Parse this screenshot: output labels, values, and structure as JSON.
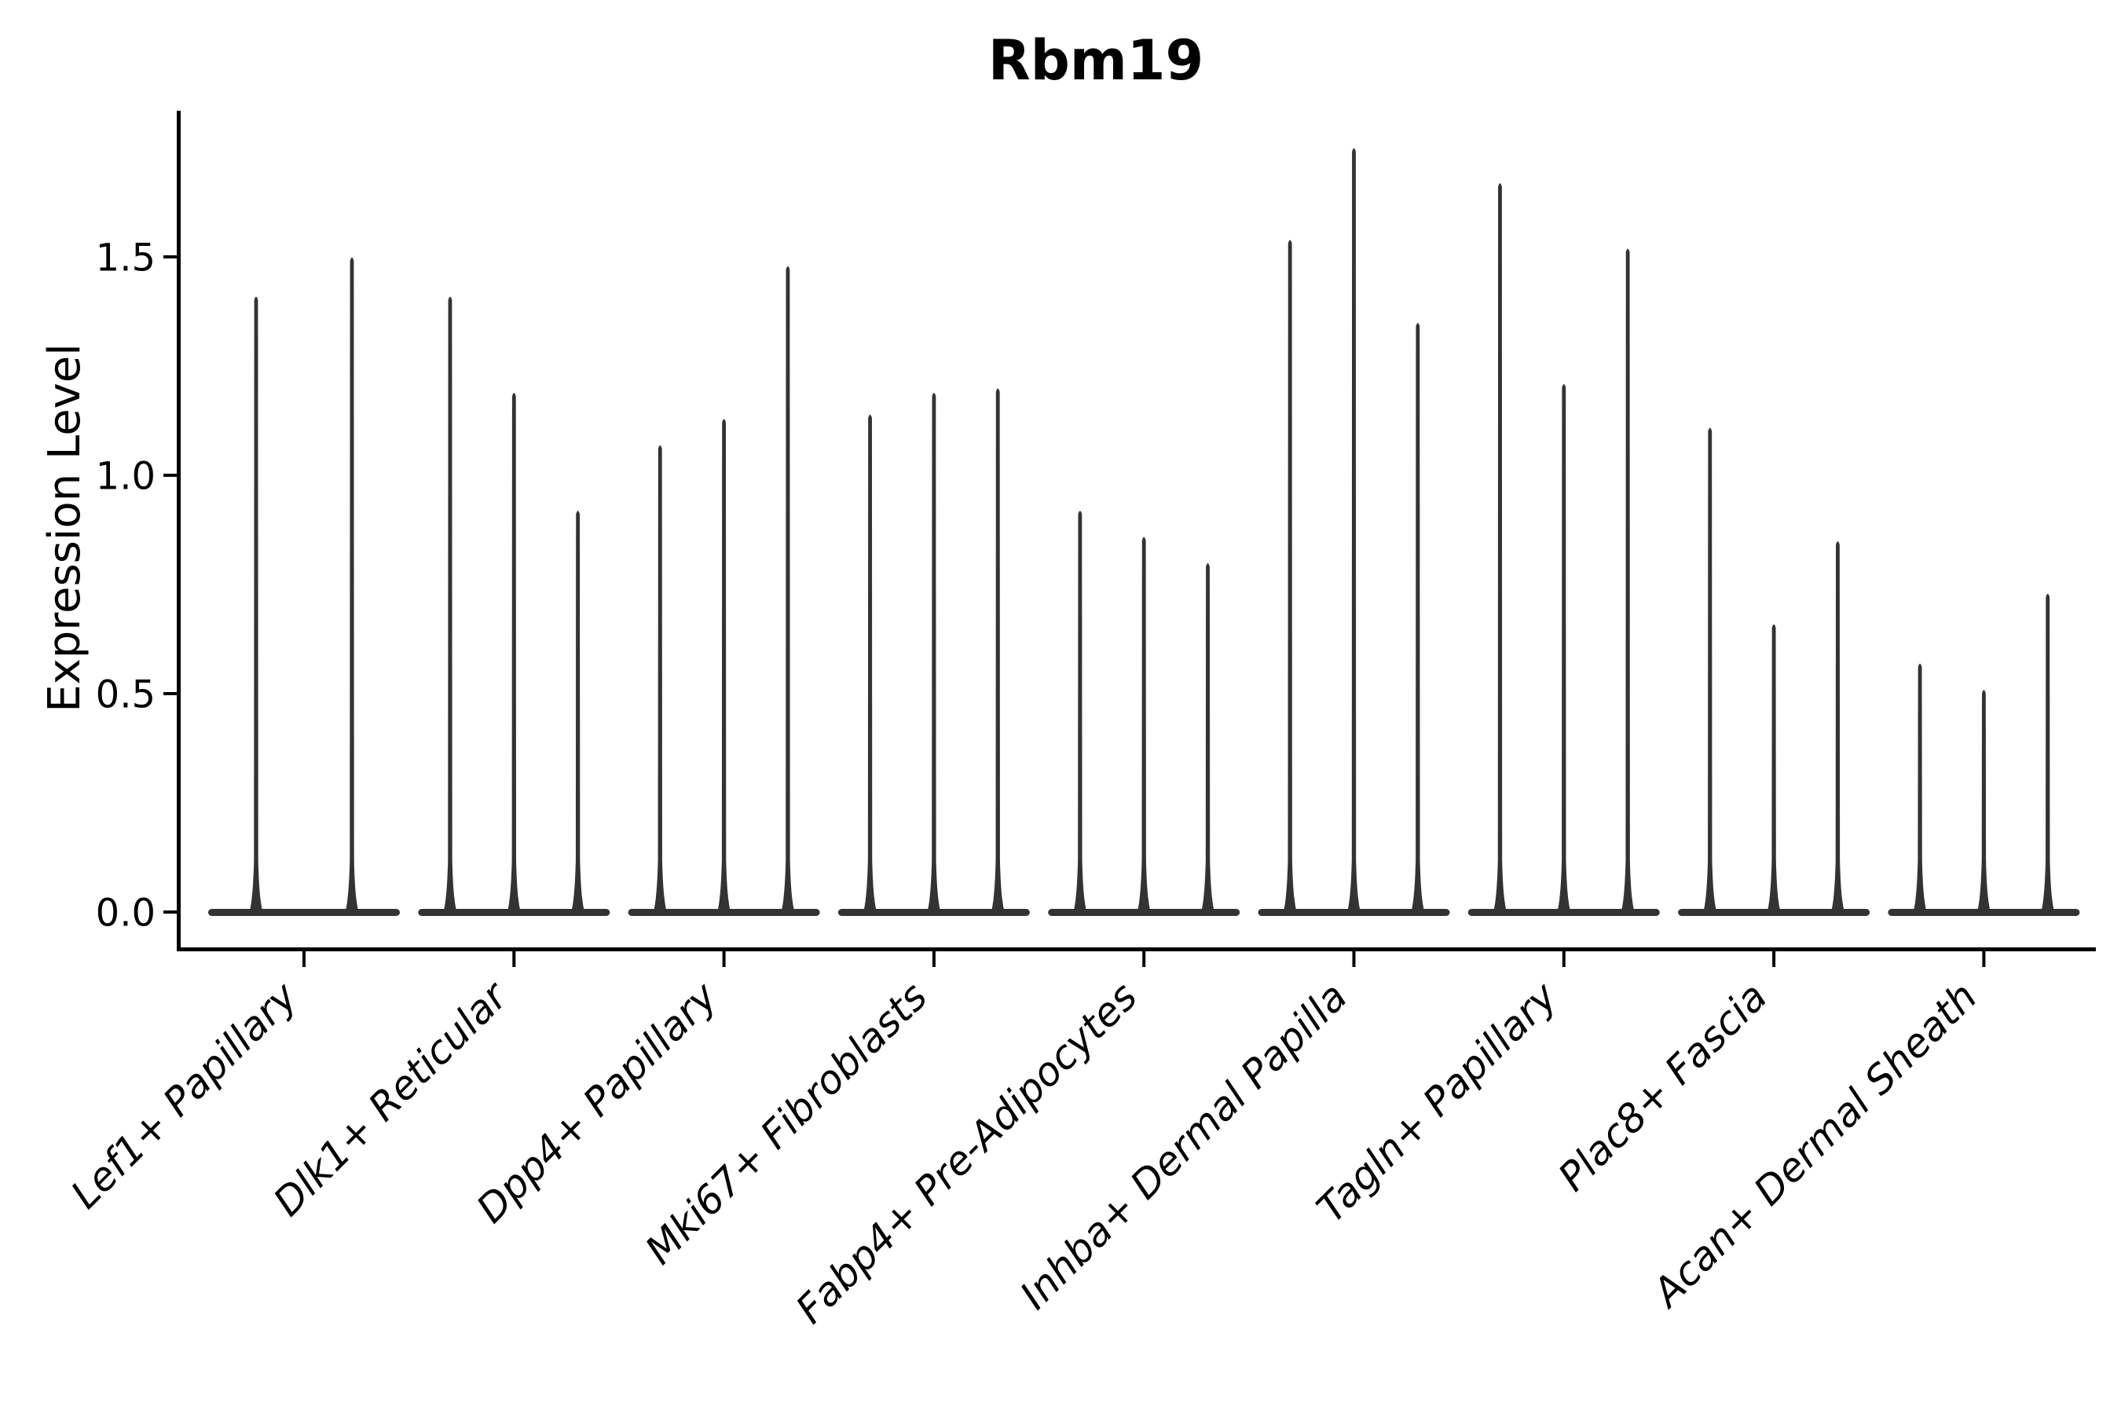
{
  "title": "Rbm19",
  "y_axis": {
    "label": "Expression Level",
    "tick_labels": [
      "0.0",
      "0.5",
      "1.0",
      "1.5"
    ]
  },
  "x_axis": {
    "categories": [
      "Lef1+ Papillary",
      "Dlk1+ Reticular",
      "Dpp4+ Papillary",
      "Mki67+ Fibroblasts",
      "Fabp4+ Pre-Adipocytes",
      "Inhba+ Dermal Papilla",
      "Tagln+ Papillary",
      "Plac8+ Fascia",
      "Acan+ Dermal Sheath"
    ]
  },
  "colors": {
    "violin": "#333333",
    "axis": "#000000",
    "text": "#000000",
    "background": "#ffffff"
  },
  "chart_data": {
    "type": "violin",
    "title": "Rbm19",
    "xlabel": "",
    "ylabel": "Expression Level",
    "yticks": [
      0.0,
      0.5,
      1.0,
      1.5
    ],
    "ylim": [
      -0.09,
      1.84
    ],
    "grid": false,
    "legend": false,
    "baseline_value": 0.0,
    "categories": [
      "Lef1+ Papillary",
      "Dlk1+ Reticular",
      "Dpp4+ Papillary",
      "Mki67+ Fibroblasts",
      "Fabp4+ Pre-Adipocytes",
      "Inhba+ Dermal Papilla",
      "Tagln+ Papillary",
      "Plac8+ Fascia",
      "Acan+ Dermal Sheath"
    ],
    "series": [
      {
        "category": "Lef1+ Papillary",
        "violin_maxima": [
          1.41,
          1.5
        ]
      },
      {
        "category": "Dlk1+ Reticular",
        "violin_maxima": [
          1.41,
          1.19,
          0.92
        ]
      },
      {
        "category": "Dpp4+ Papillary",
        "violin_maxima": [
          1.07,
          1.13,
          1.48
        ]
      },
      {
        "category": "Mki67+ Fibroblasts",
        "violin_maxima": [
          1.14,
          1.19,
          1.2
        ]
      },
      {
        "category": "Fabp4+ Pre-Adipocytes",
        "violin_maxima": [
          0.92,
          0.86,
          0.8
        ]
      },
      {
        "category": "Inhba+ Dermal Papilla",
        "violin_maxima": [
          1.54,
          1.75,
          1.35
        ]
      },
      {
        "category": "Tagln+ Papillary",
        "violin_maxima": [
          1.67,
          1.21,
          1.52
        ]
      },
      {
        "category": "Plac8+ Fascia",
        "violin_maxima": [
          1.11,
          0.66,
          0.85
        ]
      },
      {
        "category": "Acan+ Dermal Sheath",
        "violin_maxima": [
          0.57,
          0.51,
          0.73
        ]
      }
    ]
  }
}
